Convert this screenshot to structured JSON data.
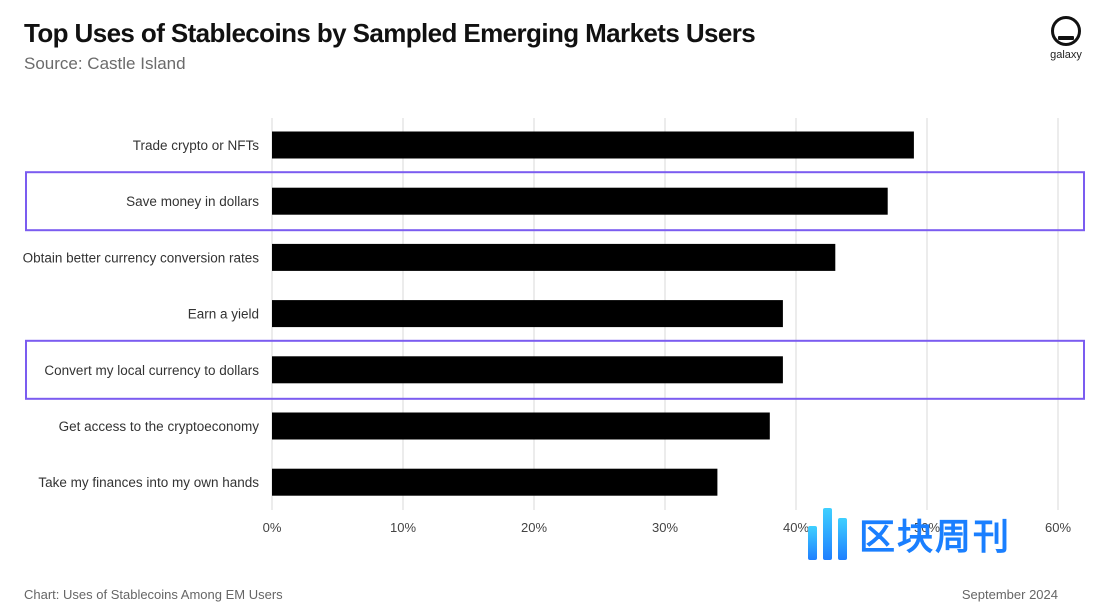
{
  "header": {
    "title": "Top Uses of Stablecoins by Sampled Emerging Markets Users",
    "subtitle": "Source: Castle Island"
  },
  "logo": {
    "text": "galaxy",
    "icon": "galaxy-logo-icon"
  },
  "footer": {
    "left": "Chart: Uses of Stablecoins Among EM Users",
    "right": "September 2024"
  },
  "watermark": {
    "text": "区块周刊",
    "icon": "blockweekly-logo-icon"
  },
  "colors": {
    "bar": "#000000",
    "highlight": "#7b5cf0",
    "grid": "#d9d9d9"
  },
  "chart_data": {
    "type": "bar",
    "orientation": "horizontal",
    "categories": [
      "Trade crypto or NFTs",
      "Save money in dollars",
      "Obtain better currency conversion rates",
      "Earn a yield",
      "Convert my local currency to dollars",
      "Get access to the cryptoeconomy",
      "Take my finances into my own hands"
    ],
    "values": [
      49,
      47,
      43,
      39,
      39,
      38,
      34
    ],
    "unit": "%",
    "xlim": [
      0,
      60
    ],
    "xticks": [
      "0%",
      "10%",
      "20%",
      "30%",
      "40%",
      "50%",
      "60%"
    ],
    "highlighted": [
      "Save money in dollars",
      "Convert my local currency to dollars"
    ],
    "grid": "vertical",
    "legend": "none"
  }
}
